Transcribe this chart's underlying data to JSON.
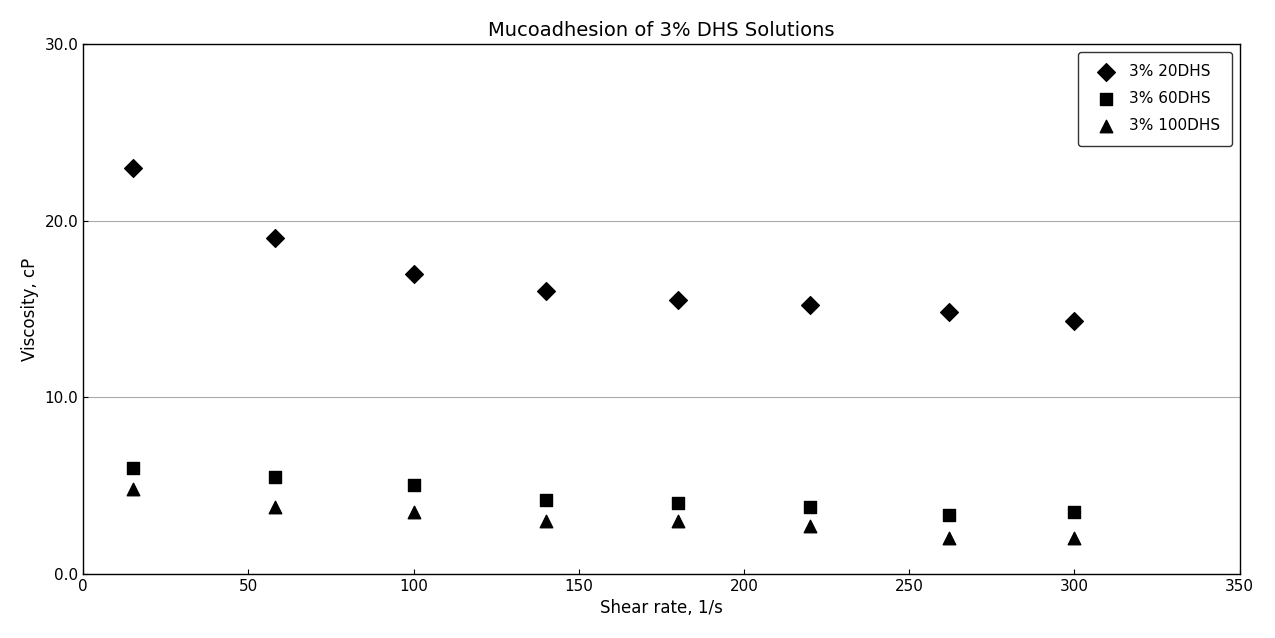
{
  "title": "Mucoadhesion of 3% DHS Solutions",
  "xlabel": "Shear rate, 1/s",
  "ylabel": "Viscosity, cP",
  "xlim": [
    0,
    350
  ],
  "ylim": [
    0.0,
    30.0
  ],
  "xticks": [
    0,
    50,
    100,
    150,
    200,
    250,
    300,
    350
  ],
  "yticks": [
    0.0,
    10.0,
    20.0,
    30.0
  ],
  "series": [
    {
      "label": "3% 20DHS",
      "marker": "D",
      "color": "#000000",
      "markersize": 9,
      "x": [
        15,
        58,
        100,
        140,
        180,
        220,
        262,
        300
      ],
      "y": [
        23.0,
        19.0,
        17.0,
        16.0,
        15.5,
        15.2,
        14.8,
        14.3
      ]
    },
    {
      "label": "3% 60DHS",
      "marker": "s",
      "color": "#000000",
      "markersize": 8,
      "x": [
        15,
        58,
        100,
        140,
        180,
        220,
        262,
        300
      ],
      "y": [
        6.0,
        5.5,
        5.0,
        4.2,
        4.0,
        3.8,
        3.3,
        3.5
      ]
    },
    {
      "label": "3% 100DHS",
      "marker": "^",
      "color": "#000000",
      "markersize": 9,
      "x": [
        15,
        58,
        100,
        140,
        180,
        220,
        262,
        300
      ],
      "y": [
        4.8,
        3.8,
        3.5,
        3.0,
        3.0,
        2.7,
        2.0,
        2.0
      ]
    }
  ],
  "background_color": "#ffffff",
  "grid_color": "#aaaaaa",
  "legend_fontsize": 11,
  "title_fontsize": 14,
  "axis_fontsize": 12
}
